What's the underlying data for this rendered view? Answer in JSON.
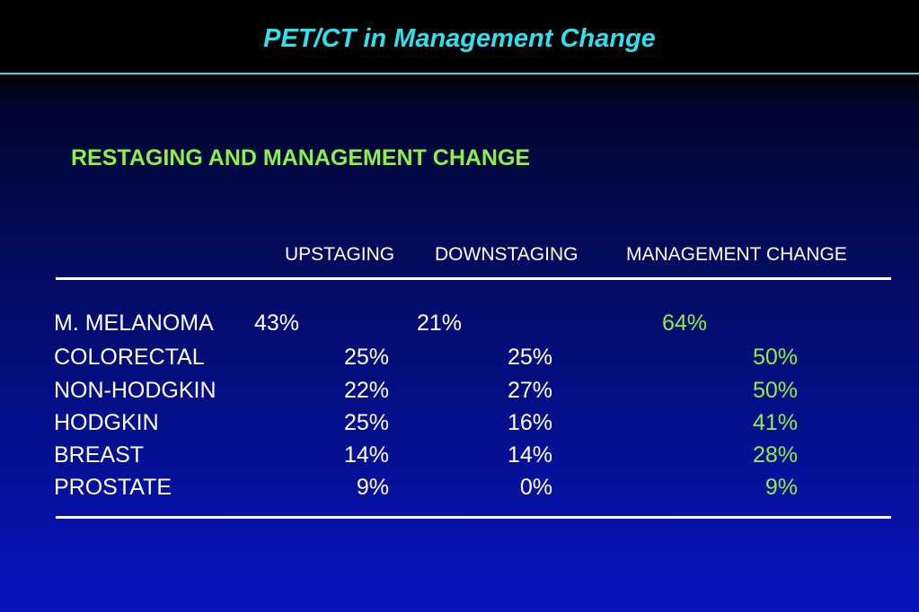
{
  "title": "PET/CT in Management Change",
  "subtitle": "RESTAGING AND MANAGEMENT CHANGE",
  "columns": [
    "UPSTAGING",
    "DOWNSTAGING",
    "MANAGEMENT CHANGE"
  ],
  "rows": [
    {
      "label": "M. MELANOMA",
      "upstaging": "43%",
      "downstaging": "21%",
      "management": "64%"
    },
    {
      "label": "COLORECTAL",
      "upstaging": "25%",
      "downstaging": "25%",
      "management": "50%"
    },
    {
      "label": "NON-HODGKIN",
      "upstaging": "22%",
      "downstaging": "27%",
      "management": "50%"
    },
    {
      "label": "HODGKIN",
      "upstaging": "25%",
      "downstaging": "16%",
      "management": "41%"
    },
    {
      "label": "BREAST",
      "upstaging": "14%",
      "downstaging": "14%",
      "management": "28%"
    },
    {
      "label": "PROSTATE",
      "upstaging": "9%",
      "downstaging": "0%",
      "management": "9%"
    }
  ],
  "colors": {
    "title": "#2fe0ee",
    "accent": "#8cf04a",
    "text": "#ffffff",
    "background_top": "#000000",
    "background_bottom": "#0714bd"
  }
}
